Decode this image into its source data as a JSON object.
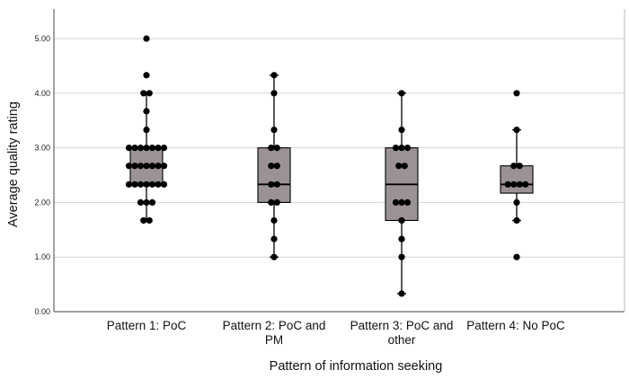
{
  "chart_data": {
    "type": "box",
    "xlabel": "Pattern of information seeking",
    "ylabel": "Average quality rating",
    "ylim": [
      0,
      5.5
    ],
    "yticks": [
      "0.00",
      "1.00",
      "2.00",
      "3.00",
      "4.00",
      "5.00"
    ],
    "grid": true,
    "box_color": "#9b9393",
    "point_color": "#000000",
    "grid_color": "#d4d4d4",
    "categories": [
      {
        "label_lines": [
          "Pattern 1: PoC"
        ],
        "whisker_low": 1.67,
        "q1": 2.33,
        "median": 2.67,
        "q3": 3.0,
        "whisker_high": 4.0,
        "points": [
          [
            1.67,
            2
          ],
          [
            2.0,
            3
          ],
          [
            2.33,
            7
          ],
          [
            2.67,
            7
          ],
          [
            3.0,
            7
          ],
          [
            3.33,
            1
          ],
          [
            3.67,
            1
          ],
          [
            4.0,
            2
          ],
          [
            4.33,
            1
          ],
          [
            5.0,
            1
          ]
        ]
      },
      {
        "label_lines": [
          "Pattern 2: PoC and",
          "PM"
        ],
        "whisker_low": 1.0,
        "q1": 2.0,
        "median": 2.33,
        "q3": 3.0,
        "whisker_high": 4.33,
        "points": [
          [
            1.0,
            1
          ],
          [
            1.33,
            1
          ],
          [
            1.67,
            1
          ],
          [
            2.0,
            2
          ],
          [
            2.33,
            2
          ],
          [
            2.67,
            2
          ],
          [
            3.0,
            2
          ],
          [
            3.33,
            1
          ],
          [
            4.0,
            1
          ],
          [
            4.33,
            1
          ]
        ]
      },
      {
        "label_lines": [
          "Pattern 3: PoC and",
          "other"
        ],
        "whisker_low": 0.33,
        "q1": 1.67,
        "median": 2.33,
        "q3": 3.0,
        "whisker_high": 4.0,
        "points": [
          [
            0.33,
            1
          ],
          [
            1.0,
            1
          ],
          [
            1.33,
            1
          ],
          [
            1.67,
            1
          ],
          [
            2.0,
            3
          ],
          [
            2.67,
            2
          ],
          [
            3.0,
            3
          ],
          [
            3.33,
            1
          ],
          [
            4.0,
            1
          ]
        ]
      },
      {
        "label_lines": [
          "Pattern 4: No PoC"
        ],
        "whisker_low": 1.67,
        "q1": 2.17,
        "median": 2.33,
        "q3": 2.67,
        "whisker_high": 3.33,
        "points": [
          [
            1.0,
            1
          ],
          [
            1.67,
            1
          ],
          [
            2.0,
            1
          ],
          [
            2.33,
            4
          ],
          [
            2.67,
            2
          ],
          [
            3.33,
            1
          ],
          [
            4.0,
            1
          ]
        ]
      }
    ]
  }
}
